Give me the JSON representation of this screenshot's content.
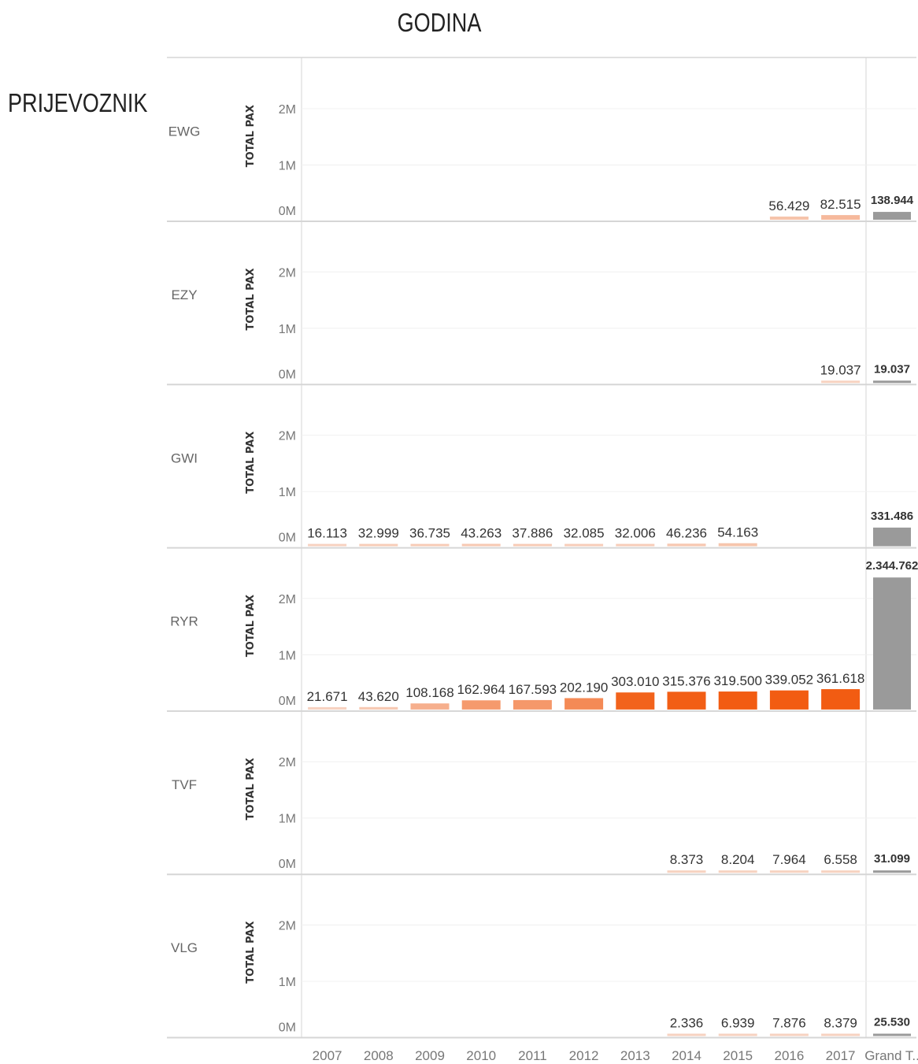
{
  "header": {
    "column_title": "GODINA",
    "row_title": "PRIJEVOZNIK"
  },
  "chart_data": {
    "type": "bar",
    "categories": [
      "2007",
      "2008",
      "2009",
      "2010",
      "2011",
      "2012",
      "2013",
      "2014",
      "2015",
      "2016",
      "2017",
      "Grand T.."
    ],
    "measure_label": "TOTAL PAX",
    "y_ticks": [
      "0M",
      "1M",
      "2M"
    ],
    "ylim": [
      0,
      2600000
    ],
    "grid": true,
    "colors": {
      "total_bar": "#9a9a9a",
      "color_low": "#f7d2c0",
      "color_high": "#f25c12",
      "divider": "#d6d6d6",
      "gridline": "#f0f0f0"
    },
    "rows": [
      {
        "carrier": "EWG",
        "values": [
          null,
          null,
          null,
          null,
          null,
          null,
          null,
          null,
          null,
          56429,
          82515
        ],
        "labels": [
          "",
          "",
          "",
          "",
          "",
          "",
          "",
          "",
          "",
          "56.429",
          "82.515"
        ],
        "total": 138944,
        "total_label": "138.944"
      },
      {
        "carrier": "EZY",
        "values": [
          null,
          null,
          null,
          null,
          null,
          null,
          null,
          null,
          null,
          null,
          19037
        ],
        "labels": [
          "",
          "",
          "",
          "",
          "",
          "",
          "",
          "",
          "",
          "",
          "19.037"
        ],
        "total": 19037,
        "total_label": "19.037"
      },
      {
        "carrier": "GWI",
        "values": [
          16113,
          32999,
          36735,
          43263,
          37886,
          32085,
          32006,
          46236,
          54163,
          null,
          null
        ],
        "labels": [
          "16.113",
          "32.999",
          "36.735",
          "43.263",
          "37.886",
          "32.085",
          "32.006",
          "46.236",
          "54.163",
          "",
          ""
        ],
        "total": 331486,
        "total_label": "331.486"
      },
      {
        "carrier": "RYR",
        "values": [
          21671,
          43620,
          108168,
          162964,
          167593,
          202190,
          303010,
          315376,
          319500,
          339052,
          361618
        ],
        "labels": [
          "21.671",
          "43.620",
          "108.168",
          "162.964",
          "167.593",
          "202.190",
          "303.010",
          "315.376",
          "319.500",
          "339.052",
          "361.618"
        ],
        "total": 2344762,
        "total_label": "2.344.762"
      },
      {
        "carrier": "TVF",
        "values": [
          null,
          null,
          null,
          null,
          null,
          null,
          null,
          8373,
          8204,
          7964,
          6558
        ],
        "labels": [
          "",
          "",
          "",
          "",
          "",
          "",
          "",
          "8.373",
          "8.204",
          "7.964",
          "6.558"
        ],
        "total": 31099,
        "total_label": "31.099"
      },
      {
        "carrier": "VLG",
        "values": [
          null,
          null,
          null,
          null,
          null,
          null,
          null,
          2336,
          6939,
          7876,
          8379
        ],
        "labels": [
          "",
          "",
          "",
          "",
          "",
          "",
          "",
          "2.336",
          "6.939",
          "7.876",
          "8.379"
        ],
        "total": 25530,
        "total_label": "25.530"
      }
    ]
  }
}
